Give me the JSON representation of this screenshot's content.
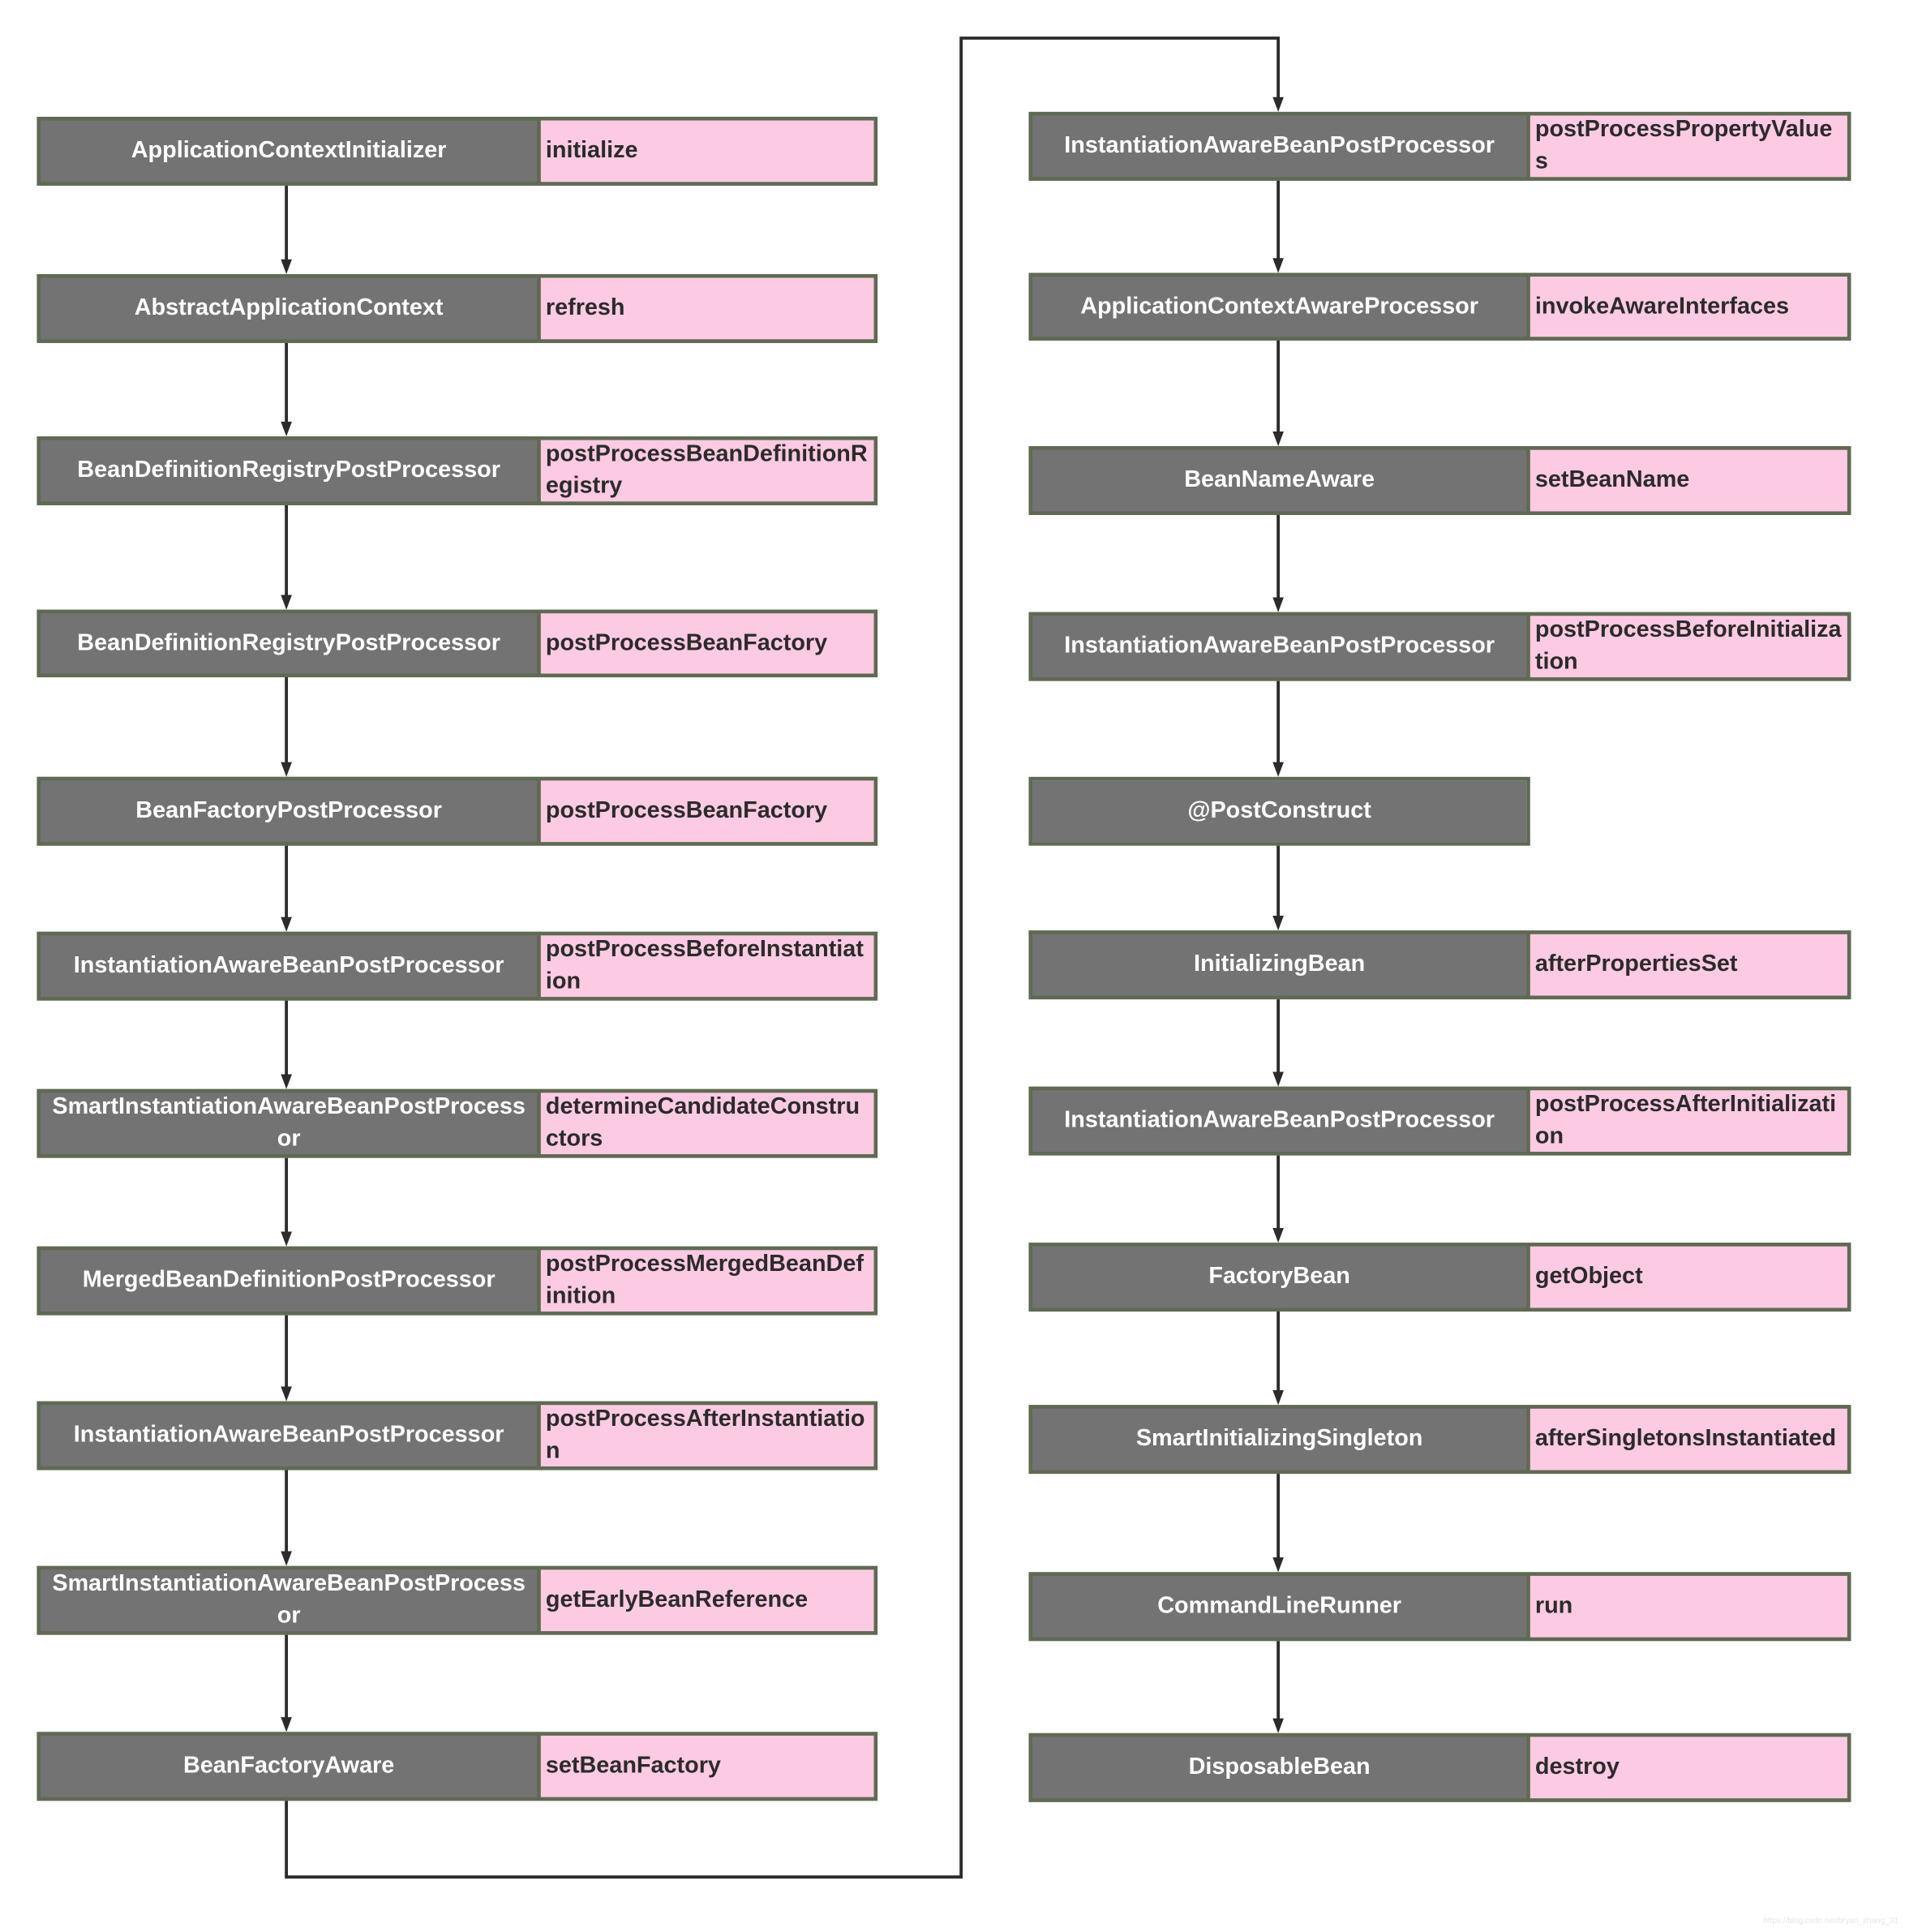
{
  "colors": {
    "class_fill": "#737373",
    "method_fill": "#fdcae4",
    "border": "#5f6a53",
    "arrow": "#2b2b2b"
  },
  "left_column": [
    {
      "class": "ApplicationContextInitializer",
      "method": "initialize"
    },
    {
      "class": "AbstractApplicationContext",
      "method": "refresh"
    },
    {
      "class": "BeanDefinitionRegistryPostProcessor",
      "method": "postProcessBeanDefinitionRegistry"
    },
    {
      "class": "BeanDefinitionRegistryPostProcessor",
      "method": "postProcessBeanFactory"
    },
    {
      "class": "BeanFactoryPostProcessor",
      "method": "postProcessBeanFactory"
    },
    {
      "class": "InstantiationAwareBeanPostProcessor",
      "method": "postProcessBeforeInstantiation"
    },
    {
      "class": "SmartInstantiationAwareBeanPostProcessor",
      "method": "determineCandidateConstructors"
    },
    {
      "class": "MergedBeanDefinitionPostProcessor",
      "method": "postProcessMergedBeanDefinition"
    },
    {
      "class": "InstantiationAwareBeanPostProcessor",
      "method": "postProcessAfterInstantiation"
    },
    {
      "class": "SmartInstantiationAwareBeanPostProcessor",
      "method": "getEarlyBeanReference"
    },
    {
      "class": "BeanFactoryAware",
      "method": "setBeanFactory"
    }
  ],
  "right_column": [
    {
      "class": "InstantiationAwareBeanPostProcessor",
      "method": "postProcessPropertyValues"
    },
    {
      "class": "ApplicationContextAwareProcessor",
      "method": "invokeAwareInterfaces"
    },
    {
      "class": "BeanNameAware",
      "method": "setBeanName"
    },
    {
      "class": "InstantiationAwareBeanPostProcessor",
      "method": "postProcessBeforeInitialization"
    },
    {
      "class": "@PostConstruct",
      "method": null
    },
    {
      "class": "InitializingBean",
      "method": "afterPropertiesSet"
    },
    {
      "class": "InstantiationAwareBeanPostProcessor",
      "method": "postProcessAfterInitialization"
    },
    {
      "class": "FactoryBean",
      "method": "getObject"
    },
    {
      "class": "SmartInitializingSingleton",
      "method": "afterSingletonsInstantiated"
    },
    {
      "class": "CommandLineRunner",
      "method": "run"
    },
    {
      "class": "DisposableBean",
      "method": "destroy"
    }
  ],
  "watermark": "https://blog.csdn.net/bryan_zhang_31"
}
